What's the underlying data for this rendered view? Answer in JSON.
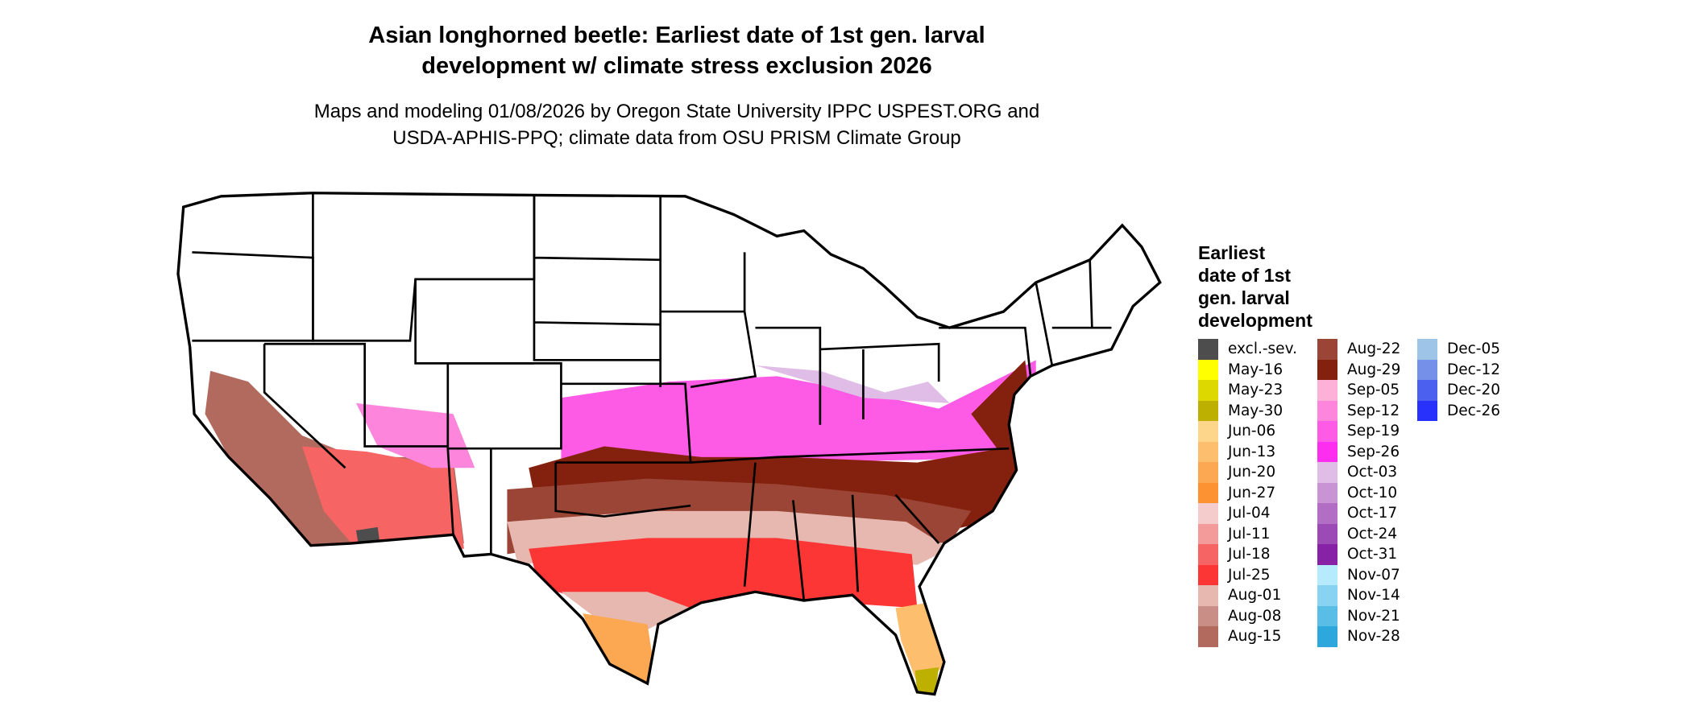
{
  "title": {
    "line1": "Asian longhorned beetle: Earliest date of 1st gen. larval",
    "line2": "development w/ climate stress exclusion 2026"
  },
  "subtitle": {
    "line1": "Maps and modeling 01/08/2026 by Oregon State University IPPC USPEST.ORG and",
    "line2": "USDA-APHIS-PPQ; climate data from OSU PRISM Climate Group"
  },
  "legend": {
    "title_lines": [
      "Earliest",
      "date of 1st",
      "gen. larval",
      "development"
    ],
    "columns": [
      [
        {
          "label": "excl.-sev.",
          "color": "#4d4d4d"
        },
        {
          "label": "May-16",
          "color": "#ffff00"
        },
        {
          "label": "May-23",
          "color": "#dcd800"
        },
        {
          "label": "May-30",
          "color": "#bdb000"
        },
        {
          "label": "Jun-06",
          "color": "#fdd68c"
        },
        {
          "label": "Jun-13",
          "color": "#fdbe6e"
        },
        {
          "label": "Jun-20",
          "color": "#fca853"
        },
        {
          "label": "Jun-27",
          "color": "#fc9232"
        },
        {
          "label": "Jul-04",
          "color": "#f4cccc"
        },
        {
          "label": "Jul-11",
          "color": "#f39a9a"
        },
        {
          "label": "Jul-18",
          "color": "#f66464"
        },
        {
          "label": "Jul-25",
          "color": "#fc3535"
        },
        {
          "label": "Aug-01",
          "color": "#e6b8b0"
        },
        {
          "label": "Aug-08",
          "color": "#c98f86"
        },
        {
          "label": "Aug-15",
          "color": "#b36a5e"
        }
      ],
      [
        {
          "label": "Aug-22",
          "color": "#9a4535"
        },
        {
          "label": "Aug-29",
          "color": "#84200e"
        },
        {
          "label": "Sep-05",
          "color": "#fdb0d8"
        },
        {
          "label": "Sep-12",
          "color": "#fd85dc"
        },
        {
          "label": "Sep-19",
          "color": "#fd5ae5"
        },
        {
          "label": "Sep-26",
          "color": "#fd2ef0"
        },
        {
          "label": "Oct-03",
          "color": "#e0bde6"
        },
        {
          "label": "Oct-10",
          "color": "#c994d4"
        },
        {
          "label": "Oct-17",
          "color": "#b26ec4"
        },
        {
          "label": "Oct-24",
          "color": "#9c4ab5"
        },
        {
          "label": "Oct-31",
          "color": "#8722a6"
        },
        {
          "label": "Nov-07",
          "color": "#b5ebfc"
        },
        {
          "label": "Nov-14",
          "color": "#88d3f1"
        },
        {
          "label": "Nov-21",
          "color": "#5abde6"
        },
        {
          "label": "Nov-28",
          "color": "#2ea8dc"
        }
      ],
      [
        {
          "label": "Dec-05",
          "color": "#9ec4e8"
        },
        {
          "label": "Dec-12",
          "color": "#7490e8"
        },
        {
          "label": "Dec-20",
          "color": "#4c60f0"
        },
        {
          "label": "Dec-26",
          "color": "#2830fc"
        }
      ]
    ]
  }
}
